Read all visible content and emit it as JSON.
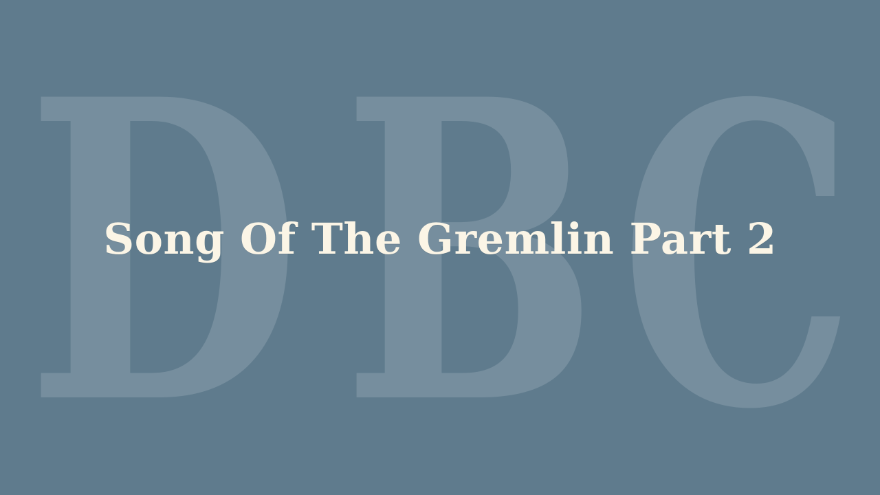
{
  "background_color": "#5f7b8d",
  "watermark": {
    "letters": [
      "D",
      "B",
      "C"
    ],
    "color": "#ffffff"
  },
  "title": {
    "text": "Song Of The Gremlin Part 2",
    "color": "#fbf5e6"
  }
}
